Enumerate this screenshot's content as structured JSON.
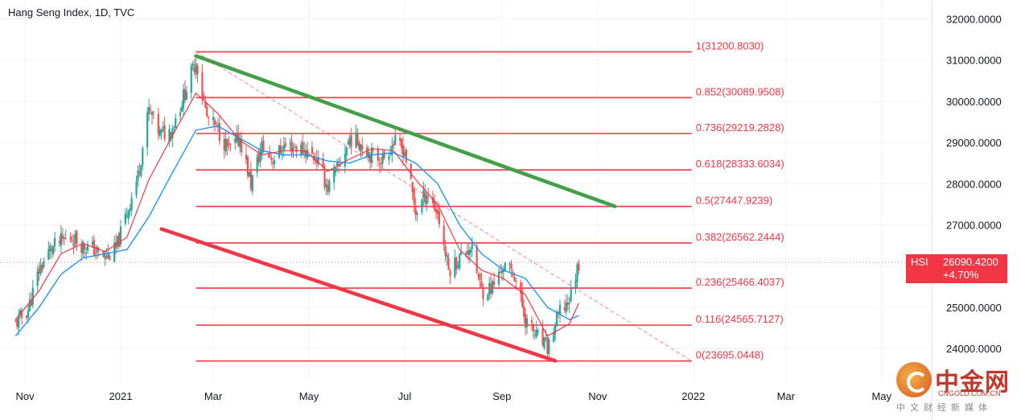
{
  "header": {
    "title": "Hang Seng Index, 1D, TVC"
  },
  "price_tag": {
    "symbol": "HSI",
    "value": "26090.4200",
    "change": "+4.70%"
  },
  "watermark": {
    "brand": "中金网",
    "site": "CNGOLD.COM.CN",
    "tagline": "中文财经新媒体"
  },
  "colors": {
    "fib": "#f23645",
    "trend_up": "#43a047",
    "ma_fast": "#f23645",
    "ma_slow": "#2196f3",
    "bull": "#26a69a",
    "bear": "#ef5350"
  },
  "chart_data": {
    "type": "candlestick",
    "title": "Hang Seng Index, 1D, TVC",
    "ylim": [
      23200,
      32400
    ],
    "y_ticks": [
      "32000.0000",
      "31000.0000",
      "30000.0000",
      "29000.0000",
      "28000.0000",
      "27000.0000",
      "26000.0000",
      "25000.0000",
      "24000.0000"
    ],
    "y_tick_values": [
      32000,
      31000,
      30000,
      29000,
      28000,
      27000,
      26000,
      25000,
      24000
    ],
    "x_ticks": [
      {
        "label": "Nov",
        "date": "2020-11-01"
      },
      {
        "label": "2021",
        "date": "2021-01-01"
      },
      {
        "label": "Mar",
        "date": "2021-03-01"
      },
      {
        "label": "May",
        "date": "2021-05-01"
      },
      {
        "label": "Jul",
        "date": "2021-07-01"
      },
      {
        "label": "Sep",
        "date": "2021-09-01"
      },
      {
        "label": "Nov",
        "date": "2021-11-01"
      },
      {
        "label": "2022",
        "date": "2022-01-01"
      },
      {
        "label": "Mar",
        "date": "2022-03-01"
      },
      {
        "label": "May",
        "date": "2022-05-01"
      }
    ],
    "fib_levels": [
      {
        "label": "1(31200.8030)",
        "value": 31200.803
      },
      {
        "label": "0.852(30089.9508)",
        "value": 30089.9508
      },
      {
        "label": "0.736(29219.2828)",
        "value": 29219.2828
      },
      {
        "label": "0.618(28333.6034)",
        "value": 28333.6034
      },
      {
        "label": "0.5(27447.9239)",
        "value": 27447.9239
      },
      {
        "label": "0.382(26562.2444)",
        "value": 26562.2444
      },
      {
        "label": "0.236(25466.4037)",
        "value": 25466.4037
      },
      {
        "label": "0.116(24565.7127)",
        "value": 24565.7127
      },
      {
        "label": "0(23695.0448)",
        "value": 23695.0448
      }
    ],
    "fib_range": {
      "start": "2021-02-18",
      "end": "2021-12-31"
    },
    "trendlines": [
      {
        "name": "upper",
        "start": {
          "date": "2021-02-18",
          "value": 31100
        },
        "end": {
          "date": "2021-11-12",
          "value": 27450
        }
      },
      {
        "name": "lower",
        "start": {
          "date": "2021-01-27",
          "value": 26900
        },
        "end": {
          "date": "2021-10-05",
          "value": 23700
        }
      },
      {
        "name": "diagonal",
        "start": {
          "date": "2021-02-18",
          "value": 31200
        },
        "end": {
          "date": "2021-12-31",
          "value": 23695
        }
      }
    ],
    "current_price": 26090.42,
    "close_path": [
      [
        "2020-10-26",
        24600
      ],
      [
        "2020-11-03",
        24950
      ],
      [
        "2020-11-10",
        25900
      ],
      [
        "2020-11-17",
        26400
      ],
      [
        "2020-11-24",
        26600
      ],
      [
        "2020-12-01",
        26700
      ],
      [
        "2020-12-08",
        26500
      ],
      [
        "2020-12-15",
        26400
      ],
      [
        "2020-12-22",
        26200
      ],
      [
        "2020-12-29",
        26400
      ],
      [
        "2021-01-05",
        27300
      ],
      [
        "2021-01-12",
        28200
      ],
      [
        "2021-01-19",
        29800
      ],
      [
        "2021-01-26",
        29200
      ],
      [
        "2021-02-02",
        29300
      ],
      [
        "2021-02-09",
        30000
      ],
      [
        "2021-02-18",
        31000
      ],
      [
        "2021-02-25",
        29600
      ],
      [
        "2021-03-04",
        29300
      ],
      [
        "2021-03-11",
        28800
      ],
      [
        "2021-03-18",
        29100
      ],
      [
        "2021-03-25",
        28000
      ],
      [
        "2021-04-01",
        28900
      ],
      [
        "2021-04-08",
        28600
      ],
      [
        "2021-04-15",
        28900
      ],
      [
        "2021-04-22",
        28900
      ],
      [
        "2021-04-29",
        28800
      ],
      [
        "2021-05-06",
        28600
      ],
      [
        "2021-05-13",
        27900
      ],
      [
        "2021-05-20",
        28400
      ],
      [
        "2021-05-27",
        29100
      ],
      [
        "2021-06-03",
        29000
      ],
      [
        "2021-06-10",
        28700
      ],
      [
        "2021-06-17",
        28600
      ],
      [
        "2021-06-24",
        29000
      ],
      [
        "2021-07-01",
        28800
      ],
      [
        "2021-07-08",
        27300
      ],
      [
        "2021-07-15",
        27800
      ],
      [
        "2021-07-22",
        27300
      ],
      [
        "2021-07-29",
        25900
      ],
      [
        "2021-08-05",
        26200
      ],
      [
        "2021-08-12",
        26500
      ],
      [
        "2021-08-19",
        25400
      ],
      [
        "2021-08-26",
        25500
      ],
      [
        "2021-09-02",
        26000
      ],
      [
        "2021-09-09",
        25800
      ],
      [
        "2021-09-16",
        24700
      ],
      [
        "2021-09-23",
        24300
      ],
      [
        "2021-09-30",
        24000
      ],
      [
        "2021-10-07",
        24800
      ],
      [
        "2021-10-14",
        25200
      ],
      [
        "2021-10-20",
        26090
      ]
    ],
    "ma_fast_path": [
      [
        "2020-10-26",
        24700
      ],
      [
        "2020-11-10",
        25400
      ],
      [
        "2020-11-24",
        26300
      ],
      [
        "2020-12-08",
        26550
      ],
      [
        "2020-12-22",
        26350
      ],
      [
        "2021-01-05",
        26700
      ],
      [
        "2021-01-19",
        28100
      ],
      [
        "2021-02-02",
        29100
      ],
      [
        "2021-02-18",
        30200
      ],
      [
        "2021-03-04",
        29700
      ],
      [
        "2021-03-18",
        29050
      ],
      [
        "2021-04-01",
        28700
      ],
      [
        "2021-04-15",
        28800
      ],
      [
        "2021-04-29",
        28800
      ],
      [
        "2021-05-13",
        28300
      ],
      [
        "2021-05-27",
        28600
      ],
      [
        "2021-06-10",
        28850
      ],
      [
        "2021-06-24",
        28800
      ],
      [
        "2021-07-08",
        28100
      ],
      [
        "2021-07-22",
        27500
      ],
      [
        "2021-08-05",
        26400
      ],
      [
        "2021-08-19",
        25900
      ],
      [
        "2021-09-02",
        25700
      ],
      [
        "2021-09-16",
        25300
      ],
      [
        "2021-09-30",
        24300
      ],
      [
        "2021-10-14",
        24600
      ],
      [
        "2021-10-20",
        25100
      ]
    ],
    "ma_slow_path": [
      [
        "2020-10-26",
        24300
      ],
      [
        "2020-11-10",
        25000
      ],
      [
        "2020-11-24",
        25800
      ],
      [
        "2020-12-08",
        26200
      ],
      [
        "2020-12-22",
        26300
      ],
      [
        "2021-01-05",
        26400
      ],
      [
        "2021-01-19",
        27200
      ],
      [
        "2021-02-02",
        28200
      ],
      [
        "2021-02-18",
        29300
      ],
      [
        "2021-03-04",
        29400
      ],
      [
        "2021-03-18",
        29100
      ],
      [
        "2021-04-01",
        28800
      ],
      [
        "2021-04-15",
        28700
      ],
      [
        "2021-04-29",
        28700
      ],
      [
        "2021-05-13",
        28550
      ],
      [
        "2021-05-27",
        28500
      ],
      [
        "2021-06-10",
        28700
      ],
      [
        "2021-06-24",
        28750
      ],
      [
        "2021-07-08",
        28500
      ],
      [
        "2021-07-22",
        28000
      ],
      [
        "2021-08-05",
        27000
      ],
      [
        "2021-08-19",
        26300
      ],
      [
        "2021-09-02",
        25900
      ],
      [
        "2021-09-16",
        25700
      ],
      [
        "2021-09-30",
        25000
      ],
      [
        "2021-10-14",
        24700
      ],
      [
        "2021-10-20",
        24800
      ]
    ]
  }
}
